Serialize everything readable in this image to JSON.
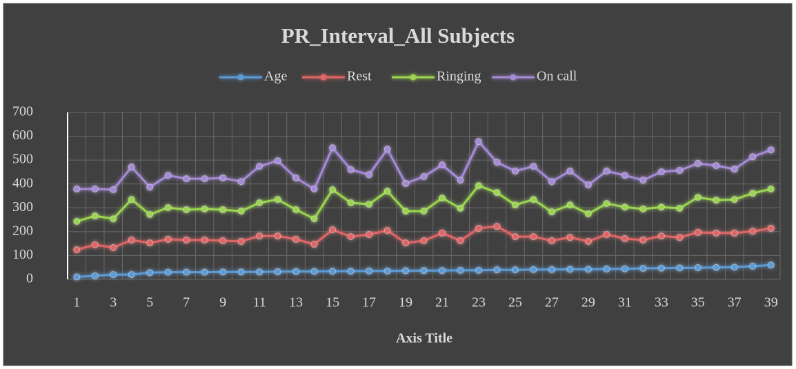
{
  "chart_data": {
    "type": "line",
    "title": "PR_Interval_All Subjects",
    "x_label": "Axis Title",
    "categories": [
      1,
      null,
      3,
      null,
      5,
      null,
      7,
      null,
      9,
      null,
      11,
      null,
      13,
      null,
      15,
      null,
      17,
      null,
      19,
      null,
      21,
      null,
      23,
      null,
      25,
      null,
      27,
      null,
      29,
      null,
      31,
      null,
      33,
      null,
      35,
      null,
      37,
      null,
      39
    ],
    "series": [
      {
        "name": "Age",
        "color": "#5b9bd5",
        "values": [
          10,
          15,
          20,
          20,
          28,
          30,
          30,
          30,
          31,
          31,
          31,
          32,
          33,
          33,
          34,
          34,
          35,
          35,
          36,
          37,
          37,
          38,
          38,
          40,
          40,
          41,
          41,
          42,
          42,
          43,
          44,
          46,
          47,
          48,
          49,
          50,
          51,
          55,
          60
        ]
      },
      {
        "name": "Rest",
        "color": "#e06666",
        "values": [
          124,
          145,
          133,
          165,
          153,
          168,
          165,
          165,
          162,
          159,
          182,
          182,
          168,
          147,
          208,
          179,
          188,
          205,
          153,
          162,
          194,
          162,
          214,
          222,
          179,
          179,
          162,
          176,
          159,
          188,
          171,
          165,
          182,
          176,
          197,
          194,
          194,
          202,
          214
        ]
      },
      {
        "name": "Ringing",
        "color": "#9bd54f",
        "values": [
          243,
          266,
          254,
          335,
          272,
          301,
          292,
          295,
          292,
          286,
          321,
          335,
          292,
          254,
          376,
          321,
          315,
          370,
          286,
          286,
          341,
          298,
          393,
          364,
          312,
          335,
          283,
          312,
          275,
          318,
          303,
          295,
          303,
          298,
          344,
          332,
          335,
          361,
          379
        ]
      },
      {
        "name": "On call",
        "color": "#a58ad6",
        "values": [
          379,
          379,
          376,
          471,
          387,
          436,
          422,
          422,
          425,
          410,
          474,
          497,
          425,
          379,
          552,
          460,
          439,
          546,
          402,
          431,
          480,
          416,
          578,
          491,
          454,
          474,
          410,
          454,
          396,
          454,
          436,
          416,
          451,
          457,
          486,
          477,
          462,
          514,
          543
        ]
      }
    ],
    "ylim": [
      0,
      700
    ],
    "yticks": [
      0,
      100,
      200,
      300,
      400,
      500,
      600,
      700
    ],
    "grid": true,
    "legend": "top"
  }
}
